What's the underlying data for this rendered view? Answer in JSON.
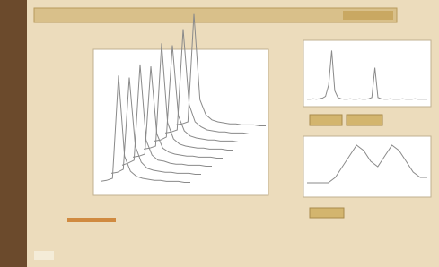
{
  "waterfall": {
    "type": "line",
    "color": "#8a8a8a",
    "xlim": [
      0,
      15
    ],
    "ylim": [
      0,
      12
    ],
    "series": [
      {
        "values": [
          0.5,
          0.6,
          0.8,
          11,
          3,
          1.5,
          1,
          0.8,
          0.7,
          0.6,
          0.6,
          0.5,
          0.5,
          0.5,
          0.4,
          0.4
        ]
      },
      {
        "values": [
          0.5,
          0.6,
          0.9,
          10,
          3.2,
          1.6,
          1,
          0.8,
          0.7,
          0.6,
          0.6,
          0.5,
          0.5,
          0.5,
          0.4,
          0.4
        ]
      },
      {
        "values": [
          0.5,
          0.7,
          1,
          10.5,
          3,
          1.5,
          1,
          0.9,
          0.7,
          0.6,
          0.6,
          0.5,
          0.5,
          0.5,
          0.4,
          0.4
        ]
      },
      {
        "values": [
          0.5,
          0.6,
          0.8,
          9.5,
          2.8,
          1.4,
          1,
          0.8,
          0.7,
          0.6,
          0.6,
          0.5,
          0.5,
          0.5,
          0.4,
          0.4
        ]
      },
      {
        "values": [
          0.5,
          0.6,
          0.8,
          11,
          3.1,
          1.5,
          1,
          0.8,
          0.7,
          0.6,
          0.6,
          0.5,
          0.5,
          0.5,
          0.4,
          0.4
        ]
      },
      {
        "values": [
          0.5,
          0.6,
          0.9,
          10,
          3,
          1.5,
          1,
          0.8,
          0.7,
          0.6,
          0.6,
          0.5,
          0.5,
          0.5,
          0.4,
          0.4
        ]
      },
      {
        "values": [
          0.5,
          0.6,
          0.8,
          10.8,
          3.3,
          1.6,
          1.1,
          0.8,
          0.7,
          0.6,
          0.6,
          0.5,
          0.5,
          0.5,
          0.4,
          0.4
        ]
      },
      {
        "values": [
          0.5,
          0.6,
          0.8,
          11.5,
          3,
          1.5,
          1,
          0.8,
          0.7,
          0.6,
          0.6,
          0.5,
          0.5,
          0.5,
          0.4,
          0.4
        ]
      }
    ]
  },
  "spectrum": {
    "type": "line",
    "color": "#8a8a8a",
    "xlim": [
      0,
      39
    ],
    "ylim": [
      0,
      10
    ],
    "values": [
      0.5,
      0.5,
      0.6,
      0.5,
      0.6,
      0.7,
      1,
      3,
      9,
      2,
      0.8,
      0.6,
      0.5,
      0.5,
      0.6,
      0.5,
      0.5,
      0.6,
      0.5,
      0.5,
      0.6,
      0.8,
      6,
      0.8,
      0.6,
      0.5,
      0.5,
      0.6,
      0.5,
      0.5,
      0.5,
      0.6,
      0.5,
      0.5,
      0.5,
      0.6,
      0.5,
      0.5,
      0.5,
      0.5
    ]
  },
  "profile": {
    "type": "line",
    "color": "#8a8a8a",
    "xlim": [
      0,
      17
    ],
    "ylim": [
      0,
      10
    ],
    "values": [
      2,
      2,
      2,
      2,
      3,
      5,
      7,
      9,
      8,
      6,
      5,
      7,
      9,
      8,
      6,
      4,
      3,
      3
    ]
  }
}
